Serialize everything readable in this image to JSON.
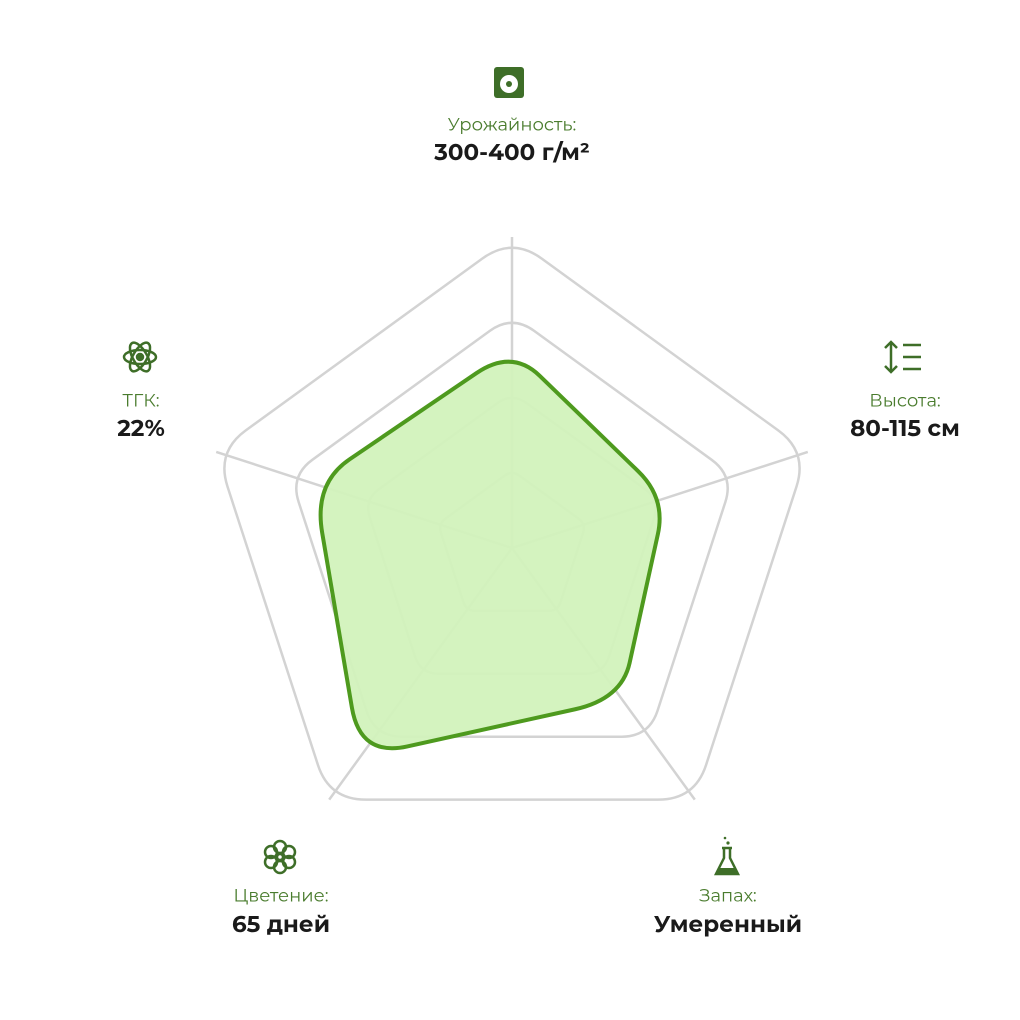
{
  "chart_data": {
    "type": "radar",
    "categories": [
      "Урожайность:",
      "Высота:",
      "Запах:",
      "Цветение:",
      "ТГК:"
    ],
    "details": [
      "300-400 г/м²",
      "80-115 см",
      "Умеренный",
      "65 дней",
      "22%"
    ],
    "values": [
      64,
      52,
      60,
      83,
      67
    ],
    "ylim": [
      0,
      100
    ],
    "yticks": [
      25,
      50,
      75,
      100
    ],
    "color": "#4e9a1e",
    "fill": "#d2f2bc",
    "grid": true
  }
}
